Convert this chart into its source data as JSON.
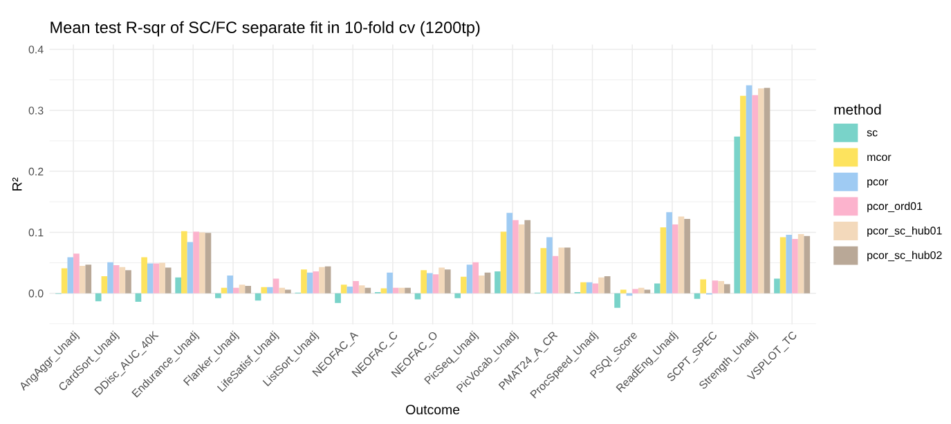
{
  "chart_data": {
    "type": "bar",
    "title": "Mean test R-sqr of SC/FC separate fit in 10-fold cv (1200tp)",
    "xlabel": "Outcome",
    "ylabel": "R²",
    "legend_title": "method",
    "legend": "right",
    "grid": true,
    "categories": [
      "AngAggr_Unadj",
      "CardSort_Unadj",
      "DDisc_AUC_40K",
      "Endurance_Unadj",
      "Flanker_Unadj",
      "LifeSatisf_Unadj",
      "ListSort_Unadj",
      "NEOFAC_A",
      "NEOFAC_C",
      "NEOFAC_O",
      "PicSeq_Unadj",
      "PicVocab_Unadj",
      "PMAT24_A_CR",
      "ProcSpeed_Unadj",
      "PSQI_Score",
      "ReadEng_Unadj",
      "SCPT_SPEC",
      "Strength_Unadj",
      "VSPLOT_TC"
    ],
    "ylim": [
      -0.051,
      0.408
    ],
    "yticks": [
      {
        "value": -0.05,
        "label": null
      },
      {
        "value": 0,
        "label": "0.0"
      },
      {
        "value": 0.05,
        "label": null
      },
      {
        "value": 0.1,
        "label": "0.1"
      },
      {
        "value": 0.15,
        "label": null
      },
      {
        "value": 0.2,
        "label": "0.2"
      },
      {
        "value": 0.25,
        "label": null
      },
      {
        "value": 0.3,
        "label": "0.3"
      },
      {
        "value": 0.35,
        "label": null
      },
      {
        "value": 0.4,
        "label": "0.4"
      }
    ],
    "series": [
      {
        "name": "sc",
        "color": "#79d3c9",
        "values": [
          -0.001,
          -0.013,
          -0.014,
          0.026,
          -0.008,
          -0.012,
          0.001,
          -0.016,
          0.002,
          -0.01,
          -0.008,
          0.036,
          0.001,
          0.002,
          -0.024,
          0.016,
          -0.009,
          0.257,
          0.024
        ]
      },
      {
        "name": "mcor",
        "color": "#fde35e",
        "values": [
          0.041,
          0.028,
          0.059,
          0.102,
          0.009,
          0.01,
          0.039,
          0.014,
          0.008,
          0.038,
          0.027,
          0.101,
          0.074,
          0.018,
          0.006,
          0.108,
          0.023,
          0.324,
          0.092
        ]
      },
      {
        "name": "pcor",
        "color": "#9fcbf3",
        "values": [
          0.059,
          0.051,
          0.049,
          0.084,
          0.029,
          0.01,
          0.034,
          0.011,
          0.034,
          0.033,
          0.047,
          0.132,
          0.092,
          0.018,
          -0.004,
          0.133,
          -0.002,
          0.341,
          0.096
        ]
      },
      {
        "name": "pcor_ord01",
        "color": "#fcb3cd",
        "values": [
          0.065,
          0.046,
          0.049,
          0.101,
          0.009,
          0.024,
          0.036,
          0.02,
          0.009,
          0.031,
          0.051,
          0.12,
          0.061,
          0.016,
          0.007,
          0.113,
          0.021,
          0.325,
          0.089
        ]
      },
      {
        "name": "pcor_sc_hub01",
        "color": "#f3d9bb",
        "values": [
          0.045,
          0.043,
          0.05,
          0.1,
          0.014,
          0.009,
          0.043,
          0.013,
          0.009,
          0.042,
          0.029,
          0.113,
          0.075,
          0.026,
          0.009,
          0.126,
          0.02,
          0.336,
          0.097
        ]
      },
      {
        "name": "pcor_sc_hub02",
        "color": "#b9a897",
        "values": [
          0.047,
          0.038,
          0.042,
          0.099,
          0.012,
          0.006,
          0.044,
          0.009,
          0.009,
          0.039,
          0.034,
          0.12,
          0.075,
          0.028,
          0.006,
          0.122,
          0.015,
          0.337,
          0.094
        ]
      }
    ]
  }
}
